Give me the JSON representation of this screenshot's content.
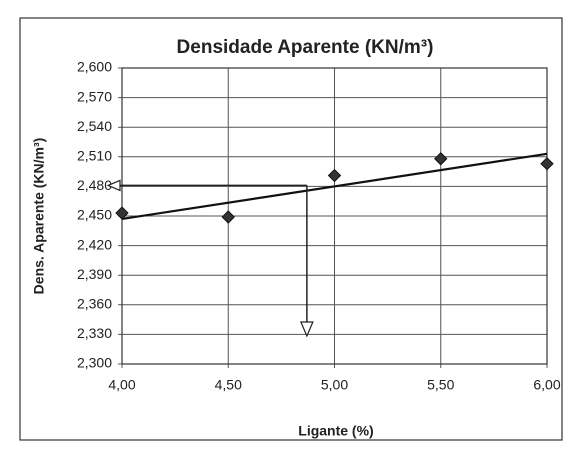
{
  "chart_data": {
    "type": "scatter",
    "title": "Densidade Aparente (KN/m³)",
    "xlabel": "Ligante (%)",
    "ylabel": "Dens. Aparente (KN/m³)",
    "x": [
      4.0,
      4.5,
      5.0,
      5.5,
      6.0
    ],
    "values": [
      2.453,
      2.449,
      2.491,
      2.508,
      2.503
    ],
    "color": "#333333",
    "trendline": {
      "x": [
        4.0,
        6.0
      ],
      "values": [
        2.447,
        2.513
      ]
    },
    "reading": {
      "x": 4.87,
      "y": 2.481
    },
    "xlim": [
      4.0,
      6.0
    ],
    "ylim": [
      2.3,
      2.6
    ],
    "xticks": [
      {
        "value": 4.0,
        "label": "4,00"
      },
      {
        "value": 4.5,
        "label": "4,50"
      },
      {
        "value": 5.0,
        "label": "5,00"
      },
      {
        "value": 5.5,
        "label": "5,50"
      },
      {
        "value": 6.0,
        "label": "6,00"
      }
    ],
    "yticks": [
      {
        "value": 2.3,
        "label": "2,300"
      },
      {
        "value": 2.33,
        "label": "2,330"
      },
      {
        "value": 2.36,
        "label": "2,360"
      },
      {
        "value": 2.39,
        "label": "2,390"
      },
      {
        "value": 2.42,
        "label": "2,420"
      },
      {
        "value": 2.45,
        "label": "2,450"
      },
      {
        "value": 2.48,
        "label": "2,480"
      },
      {
        "value": 2.51,
        "label": "2,510"
      },
      {
        "value": 2.54,
        "label": "2,540"
      },
      {
        "value": 2.57,
        "label": "2,570"
      },
      {
        "value": 2.6,
        "label": "2,600"
      }
    ],
    "grid": true
  }
}
